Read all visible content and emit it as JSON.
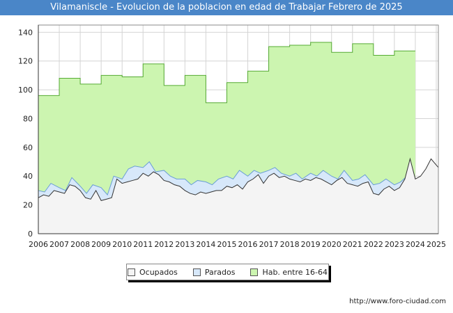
{
  "title": "Vilamaniscle - Evolucion de la poblacion en edad de Trabajar Febrero de 2025",
  "source": "http://www.foro-ciudad.com",
  "colors": {
    "title_bar": "#4a86c8",
    "hab_fill": "#ccf5b0",
    "hab_line": "#55aa33",
    "parados_fill": "#d7e8fa",
    "parados_line": "#6a9ed6",
    "ocupados_fill": "#f4f4f4",
    "ocupados_line": "#333333",
    "grid": "#d4d4d4"
  },
  "chart_data": {
    "type": "area",
    "title": "Vilamaniscle - Evolucion de la poblacion en edad de Trabajar Febrero de 2025",
    "xlabel": "",
    "ylabel": "",
    "xlim": [
      2006,
      2025.1
    ],
    "ylim": [
      0,
      145
    ],
    "x_ticks": [
      2006,
      2007,
      2008,
      2009,
      2010,
      2011,
      2012,
      2013,
      2014,
      2015,
      2016,
      2017,
      2018,
      2019,
      2020,
      2021,
      2022,
      2023,
      2024,
      2025
    ],
    "y_ticks": [
      0,
      20,
      40,
      60,
      80,
      100,
      120,
      140
    ],
    "grid": true,
    "legend_position": "bottom-center",
    "legend": [
      {
        "label": "Ocupados",
        "color": "#f4f4f4"
      },
      {
        "label": "Parados",
        "color": "#d7e8fa"
      },
      {
        "label": "Hab. entre 16-64",
        "color": "#ccf5b0"
      }
    ],
    "series": [
      {
        "name": "Hab. entre 16-64",
        "type": "step",
        "years": [
          2006,
          2007,
          2008,
          2009,
          2010,
          2011,
          2012,
          2013,
          2014,
          2015,
          2016,
          2017,
          2018,
          2019,
          2020,
          2021,
          2022,
          2023
        ],
        "values": [
          96,
          108,
          104,
          110,
          109,
          118,
          103,
          110,
          91,
          105,
          113,
          130,
          131,
          133,
          126,
          132,
          124,
          127
        ],
        "end": 2024.0
      },
      {
        "name": "Parados",
        "x": [
          2006,
          2006.3,
          2006.6,
          2007,
          2007.3,
          2007.6,
          2008,
          2008.3,
          2008.6,
          2009,
          2009.3,
          2009.6,
          2010,
          2010.3,
          2010.6,
          2011,
          2011.3,
          2011.6,
          2012,
          2012.3,
          2012.6,
          2013,
          2013.3,
          2013.6,
          2014,
          2014.3,
          2014.6,
          2015,
          2015.3,
          2015.6,
          2016,
          2016.3,
          2016.6,
          2017,
          2017.3,
          2017.6,
          2018,
          2018.3,
          2018.6,
          2019,
          2019.3,
          2019.6,
          2020,
          2020.3,
          2020.6,
          2021,
          2021.3,
          2021.6,
          2022,
          2022.3,
          2022.6,
          2023,
          2023.3,
          2023.6,
          2023.9
        ],
        "values": [
          30,
          29,
          35,
          32,
          30,
          39,
          33,
          28,
          34,
          32,
          27,
          40,
          38,
          45,
          47,
          46,
          50,
          43,
          44,
          40,
          38,
          38,
          34,
          37,
          36,
          34,
          38,
          40,
          38,
          44,
          40,
          44,
          42,
          44,
          46,
          42,
          40,
          42,
          38,
          42,
          40,
          44,
          40,
          38,
          44,
          37,
          38,
          41,
          34,
          35,
          38,
          34,
          36,
          40,
          38
        ]
      },
      {
        "name": "Ocupados",
        "x": [
          2006,
          2006.25,
          2006.5,
          2006.75,
          2007,
          2007.25,
          2007.5,
          2007.75,
          2008,
          2008.25,
          2008.5,
          2008.75,
          2009,
          2009.25,
          2009.5,
          2009.75,
          2010,
          2010.25,
          2010.5,
          2010.75,
          2011,
          2011.25,
          2011.5,
          2011.75,
          2012,
          2012.25,
          2012.5,
          2012.75,
          2013,
          2013.25,
          2013.5,
          2013.75,
          2014,
          2014.25,
          2014.5,
          2014.75,
          2015,
          2015.25,
          2015.5,
          2015.75,
          2016,
          2016.25,
          2016.5,
          2016.75,
          2017,
          2017.25,
          2017.5,
          2017.75,
          2018,
          2018.25,
          2018.5,
          2018.75,
          2019,
          2019.25,
          2019.5,
          2019.75,
          2020,
          2020.25,
          2020.5,
          2020.75,
          2021,
          2021.25,
          2021.5,
          2021.75,
          2022,
          2022.25,
          2022.5,
          2022.75,
          2023,
          2023.25,
          2023.5,
          2023.75,
          2024,
          2024.25,
          2024.5,
          2024.75,
          2025.1
        ],
        "values": [
          25,
          27,
          26,
          30,
          29,
          28,
          34,
          33,
          30,
          25,
          24,
          30,
          23,
          24,
          25,
          38,
          35,
          36,
          37,
          38,
          42,
          40,
          43,
          41,
          37,
          36,
          34,
          33,
          30,
          28,
          27,
          29,
          28,
          29,
          30,
          30,
          33,
          32,
          34,
          31,
          36,
          38,
          41,
          35,
          40,
          42,
          39,
          40,
          38,
          37,
          36,
          38,
          37,
          39,
          38,
          36,
          34,
          37,
          39,
          35,
          34,
          33,
          35,
          36,
          28,
          27,
          31,
          33,
          30,
          32,
          38,
          52,
          38,
          40,
          45,
          52,
          46
        ]
      }
    ]
  },
  "plot": {
    "x0": 55,
    "x1": 629,
    "y_bottom": 336,
    "y_top": 36
  }
}
